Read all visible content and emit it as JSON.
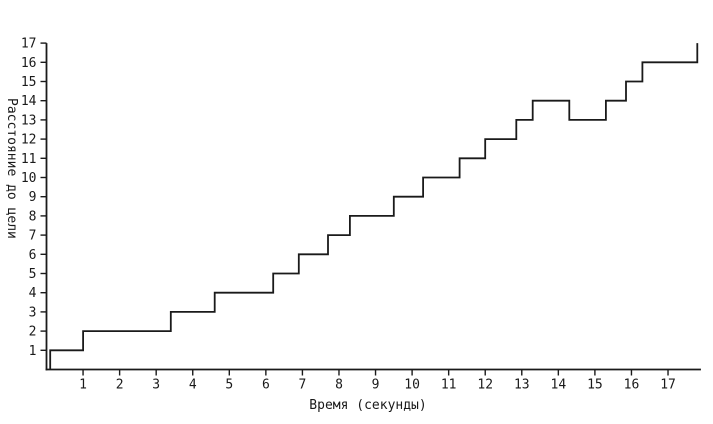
{
  "figure": {
    "background": "#ffffff",
    "axis_color": "#1a1a1a",
    "text_color": "#1a1a1a"
  },
  "chart_data": {
    "type": "line",
    "style": "step",
    "xlabel": "Время (секунды)",
    "ylabel": "Расстояние до цели",
    "xlim": [
      0,
      17.9
    ],
    "ylim": [
      0,
      17
    ],
    "x_ticks": [
      1,
      2,
      3,
      4,
      5,
      6,
      7,
      8,
      9,
      10,
      11,
      12,
      13,
      14,
      15,
      16,
      17
    ],
    "y_ticks": [
      1,
      2,
      3,
      4,
      5,
      6,
      7,
      8,
      9,
      10,
      11,
      12,
      13,
      14,
      15,
      16,
      17
    ],
    "grid": false,
    "legend": "none",
    "line_color": "#1a1a1a",
    "series": [
      {
        "name": "distance_to_target",
        "points": [
          [
            0.1,
            0
          ],
          [
            0.1,
            1
          ],
          [
            1.0,
            1
          ],
          [
            1.0,
            2
          ],
          [
            3.4,
            2
          ],
          [
            3.4,
            3
          ],
          [
            4.6,
            3
          ],
          [
            4.6,
            4
          ],
          [
            6.2,
            4
          ],
          [
            6.2,
            5
          ],
          [
            6.9,
            5
          ],
          [
            6.9,
            6
          ],
          [
            7.7,
            6
          ],
          [
            7.7,
            7
          ],
          [
            8.3,
            7
          ],
          [
            8.3,
            8
          ],
          [
            9.5,
            8
          ],
          [
            9.5,
            9
          ],
          [
            10.3,
            9
          ],
          [
            10.3,
            10
          ],
          [
            11.3,
            10
          ],
          [
            11.3,
            11
          ],
          [
            12.0,
            11
          ],
          [
            12.0,
            12
          ],
          [
            12.85,
            12
          ],
          [
            12.85,
            13
          ],
          [
            13.3,
            13
          ],
          [
            13.3,
            14
          ],
          [
            14.3,
            14
          ],
          [
            14.3,
            13
          ],
          [
            15.3,
            13
          ],
          [
            15.3,
            14
          ],
          [
            15.85,
            14
          ],
          [
            15.85,
            15
          ],
          [
            16.3,
            15
          ],
          [
            16.3,
            16
          ],
          [
            17.8,
            16
          ],
          [
            17.8,
            17
          ]
        ]
      }
    ]
  }
}
